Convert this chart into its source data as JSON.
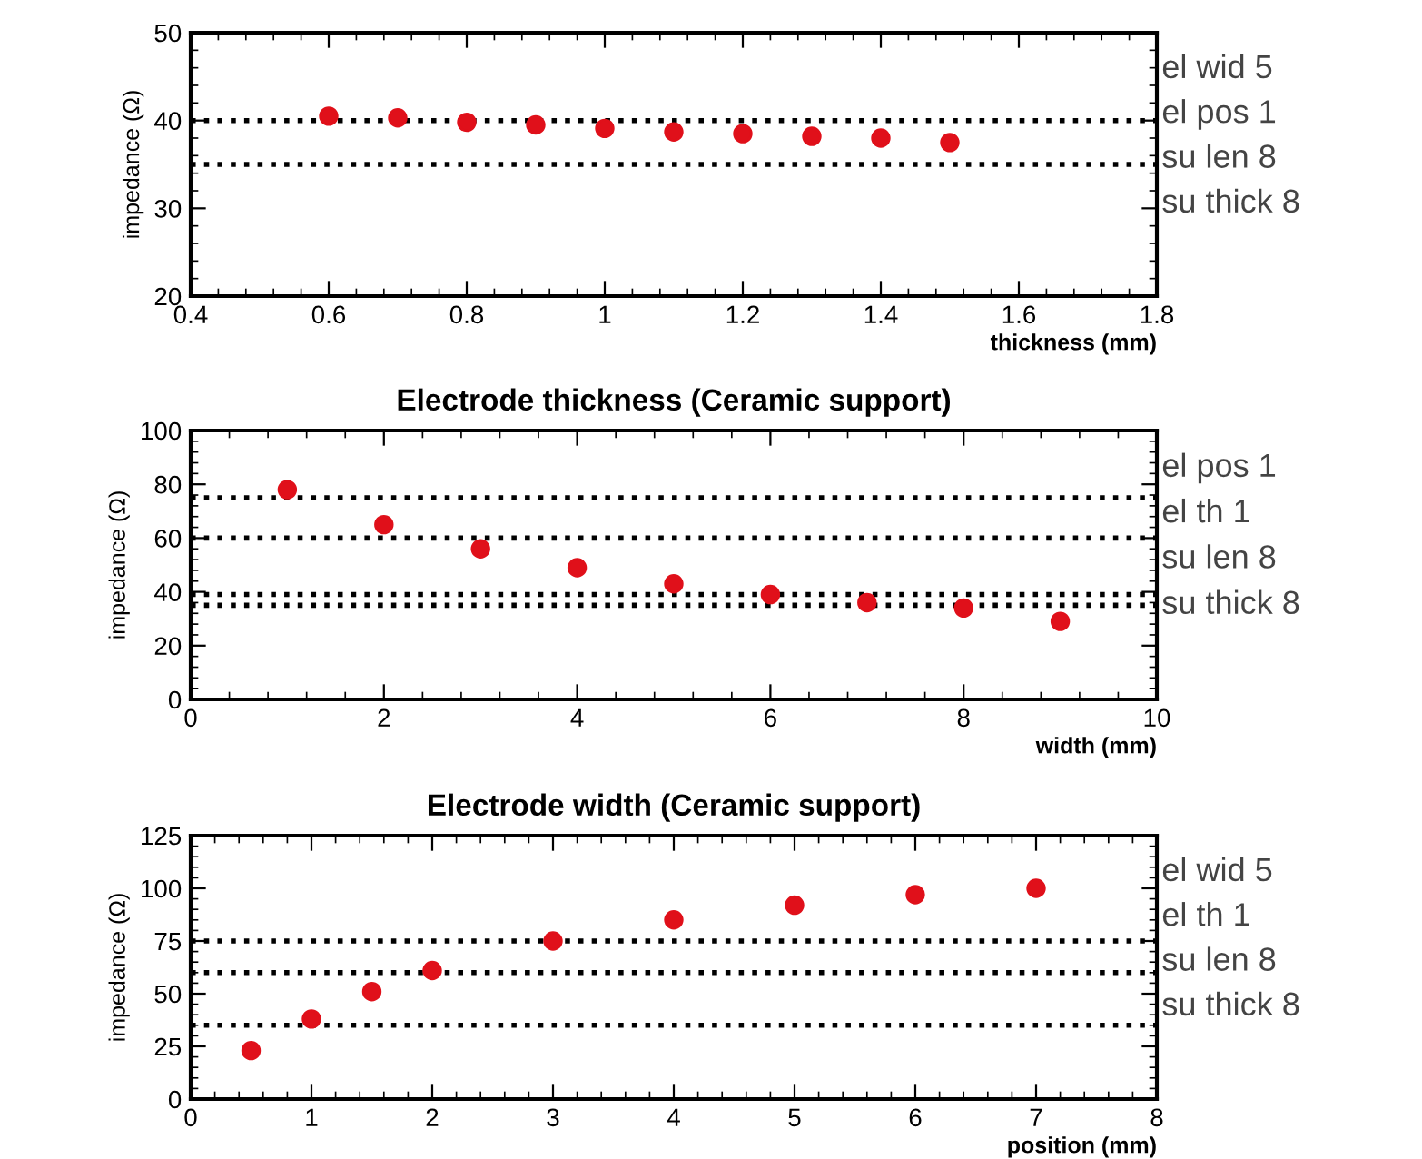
{
  "chart_data": [
    {
      "type": "scatter",
      "xlabel": "thickness (mm)",
      "ylabel": "impedance (Ω)",
      "marker": "circle",
      "grid": false,
      "x": [
        0.6,
        0.7,
        0.8,
        0.9,
        1.0,
        1.1,
        1.2,
        1.3,
        1.4,
        1.5
      ],
      "series": [
        {
          "color": "#e0101a",
          "values": [
            40.5,
            40.3,
            39.8,
            39.5,
            39.1,
            38.7,
            38.5,
            38.2,
            38.0,
            37.5
          ]
        }
      ],
      "xlim": [
        0.4,
        1.8
      ],
      "xticks": [
        0.4,
        0.6,
        0.8,
        1,
        1.2,
        1.4,
        1.6,
        1.8
      ],
      "ylim": [
        20,
        50
      ],
      "yticks": [
        20,
        30,
        40,
        50
      ],
      "ref_lines": [
        {
          "axis": "y",
          "value": 40,
          "color": "#000000",
          "line_style": "dotted"
        },
        {
          "axis": "y",
          "value": 35,
          "color": "#000000",
          "line_style": "dotted"
        }
      ],
      "annotations": [
        "el wid 5",
        "el pos 1",
        "su len 8",
        "su thick 8"
      ]
    },
    {
      "type": "scatter",
      "title": "Electrode thickness (Ceramic support)",
      "xlabel": "width (mm)",
      "ylabel": "impedance (Ω)",
      "marker": "circle",
      "grid": false,
      "x": [
        1,
        2,
        3,
        4,
        5,
        6,
        7,
        8,
        9
      ],
      "series": [
        {
          "color": "#e0101a",
          "values": [
            78,
            65,
            56,
            49,
            43,
            39,
            36,
            34,
            29
          ]
        }
      ],
      "xlim": [
        0,
        10
      ],
      "xticks": [
        0,
        2,
        4,
        6,
        8,
        10
      ],
      "ylim": [
        0,
        100
      ],
      "yticks": [
        0,
        20,
        40,
        60,
        80,
        100
      ],
      "ref_lines": [
        {
          "axis": "y",
          "value": 75,
          "color": "#000000",
          "line_style": "dotted"
        },
        {
          "axis": "y",
          "value": 60,
          "color": "#000000",
          "line_style": "dotted"
        },
        {
          "axis": "y",
          "value": 39,
          "color": "#000000",
          "line_style": "dotted"
        },
        {
          "axis": "y",
          "value": 35,
          "color": "#000000",
          "line_style": "dotted"
        }
      ],
      "annotations": [
        "el pos 1",
        "el th 1",
        "su len 8",
        "su thick 8"
      ]
    },
    {
      "type": "scatter",
      "title": "Electrode width (Ceramic support)",
      "xlabel": "position (mm)",
      "ylabel": "impedance (Ω)",
      "marker": "circle",
      "grid": false,
      "x": [
        0.5,
        1,
        1.5,
        2,
        3,
        4,
        5,
        6,
        7
      ],
      "series": [
        {
          "color": "#e0101a",
          "values": [
            23,
            38,
            51,
            61,
            75,
            85,
            92,
            97,
            100
          ]
        }
      ],
      "xlim": [
        0,
        8
      ],
      "xticks": [
        0,
        1,
        2,
        3,
        4,
        5,
        6,
        7,
        8
      ],
      "ylim": [
        0,
        125
      ],
      "yticks": [
        0,
        25,
        50,
        75,
        100,
        125
      ],
      "ref_lines": [
        {
          "axis": "y",
          "value": 75,
          "color": "#000000",
          "line_style": "dotted"
        },
        {
          "axis": "y",
          "value": 60,
          "color": "#000000",
          "line_style": "dotted"
        },
        {
          "axis": "y",
          "value": 35,
          "color": "#000000",
          "line_style": "dotted"
        }
      ],
      "annotations": [
        "el wid 5",
        "el th 1",
        "su len 8",
        "su thick 8"
      ]
    }
  ]
}
